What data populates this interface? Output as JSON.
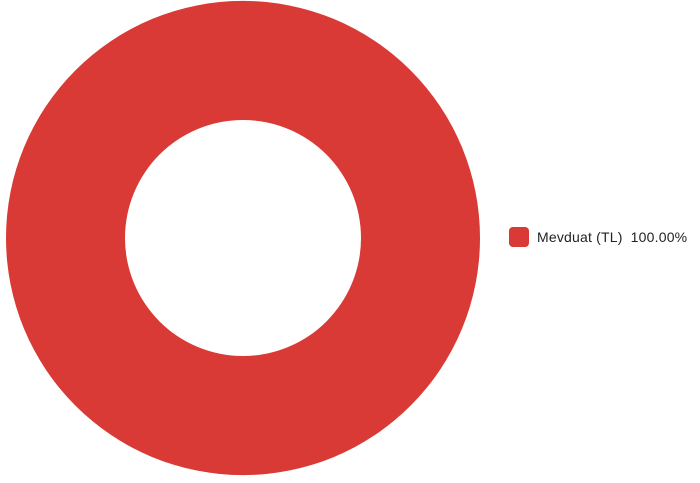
{
  "chart_data": {
    "type": "pie",
    "donut": true,
    "slices": [
      {
        "label": "Mevduat (TL)",
        "value": 100.0,
        "display": "100.00%",
        "color": "#d93a35"
      }
    ],
    "legend_position": "right"
  }
}
